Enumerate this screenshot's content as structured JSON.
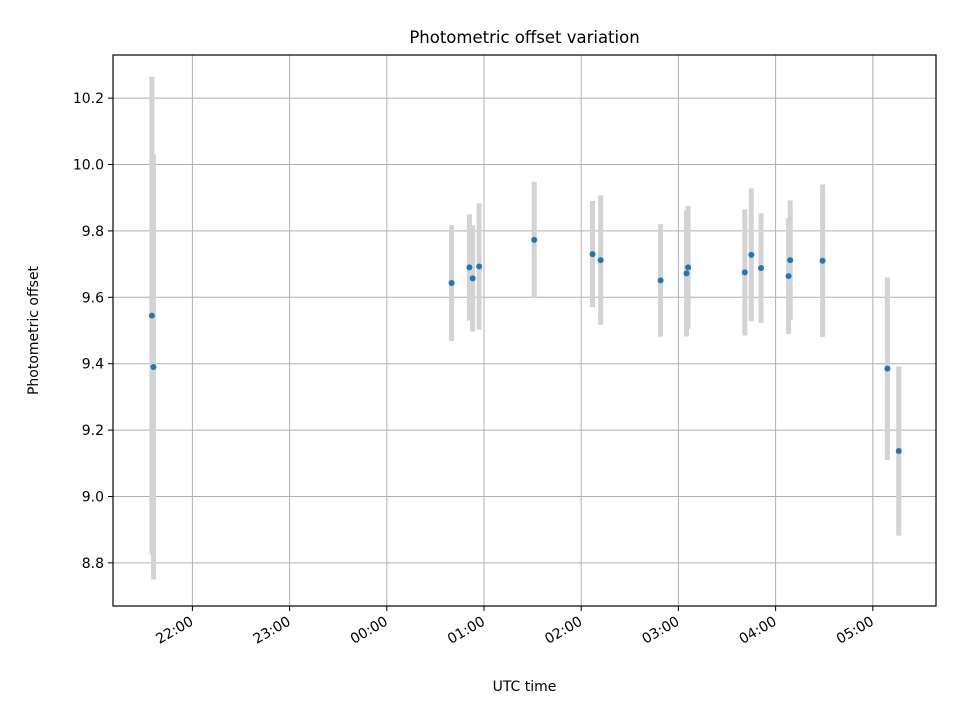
{
  "chart_data": {
    "type": "scatter",
    "title": "Photometric offset variation",
    "xlabel": "UTC time",
    "ylabel": "Photometric offset",
    "x_axis": "time",
    "xlim": [
      "21:11",
      "05:39"
    ],
    "ylim": [
      8.67,
      10.33
    ],
    "xticks": [
      "22:00",
      "23:00",
      "00:00",
      "01:00",
      "02:00",
      "03:00",
      "04:00",
      "05:00"
    ],
    "yticks": [
      8.8,
      9.0,
      9.2,
      9.4,
      9.6,
      9.8,
      10.0,
      10.2
    ],
    "grid": true,
    "marker_color": "#1f77b4",
    "errorbar_color": "#d3d3d3",
    "points": [
      {
        "time": "21:35",
        "y": 9.545,
        "err": 0.72
      },
      {
        "time": "21:36",
        "y": 9.39,
        "err": 0.64
      },
      {
        "time": "00:40",
        "y": 9.643,
        "err": 0.175
      },
      {
        "time": "00:51",
        "y": 9.69,
        "err": 0.16
      },
      {
        "time": "00:53",
        "y": 9.657,
        "err": 0.16
      },
      {
        "time": "00:57",
        "y": 9.693,
        "err": 0.19
      },
      {
        "time": "01:31",
        "y": 9.773,
        "err": 0.175
      },
      {
        "time": "02:07",
        "y": 9.73,
        "err": 0.16
      },
      {
        "time": "02:12",
        "y": 9.712,
        "err": 0.195
      },
      {
        "time": "02:49",
        "y": 9.651,
        "err": 0.17
      },
      {
        "time": "03:05",
        "y": 9.672,
        "err": 0.19
      },
      {
        "time": "03:06",
        "y": 9.69,
        "err": 0.185
      },
      {
        "time": "03:41",
        "y": 9.675,
        "err": 0.19
      },
      {
        "time": "03:45",
        "y": 9.728,
        "err": 0.2
      },
      {
        "time": "03:51",
        "y": 9.688,
        "err": 0.165
      },
      {
        "time": "04:08",
        "y": 9.664,
        "err": 0.175
      },
      {
        "time": "04:09",
        "y": 9.712,
        "err": 0.18
      },
      {
        "time": "04:29",
        "y": 9.71,
        "err": 0.23
      },
      {
        "time": "05:09",
        "y": 9.385,
        "err": 0.275
      },
      {
        "time": "05:16",
        "y": 9.137,
        "err": 0.255
      }
    ]
  }
}
